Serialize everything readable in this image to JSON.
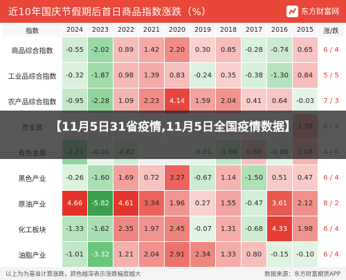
{
  "header": {
    "title": "近10年国庆节假期后首日商品指数涨跌（%）",
    "brand_name": "东方财富网"
  },
  "table": {
    "columns": [
      "指数",
      "2024",
      "2023",
      "2022",
      "2021",
      "2020",
      "2019",
      "2018",
      "2017",
      "2016",
      "2015",
      "涨/跌"
    ],
    "rows": [
      {
        "name": "商品综合指数",
        "values": [
          "-0.55",
          "-2.02",
          "0.89",
          "1.42",
          "2.20",
          "0.30",
          "0.85",
          "-0.28",
          "-0.74",
          "0.65"
        ],
        "ratio": "6 / 4"
      },
      {
        "name": "工业品综合指数",
        "values": [
          "-0.32",
          "-1.87",
          "0.98",
          "1.39",
          "0.83",
          "-0.24",
          "0.35",
          "-0.38",
          "-1.30",
          "0.84"
        ],
        "ratio": "5 / 5"
      },
      {
        "name": "农产品综合指数",
        "values": [
          "-0.95",
          "-2.28",
          "1.09",
          "2.23",
          "4.14",
          "1.59",
          "2.04",
          "0.41",
          "0.64",
          "-0.03"
        ],
        "ratio": "7 / 3"
      },
      {
        "name": "贵金属",
        "values": [
          "",
          "",
          "",
          "",
          "",
          "",
          "",
          "",
          "",
          "1.78"
        ],
        "ratio": "6 / 4"
      },
      {
        "name": "有色金属",
        "values": [
          "-2.21",
          "-0.01",
          "-0.62",
          "",
          "",
          "-0.01",
          "-1.06",
          "0.80",
          "-0.06",
          "1.08"
        ],
        "ratio": "4 / 6"
      },
      {
        "name": "黑色产业",
        "values": [
          "-0.26",
          "-1.60",
          "1.69",
          "0.72",
          "3.27",
          "-0.67",
          "1.14",
          "-1.50",
          "0.51",
          "0.47"
        ],
        "ratio": "6 / 4"
      },
      {
        "name": "原油产业",
        "values": [
          "4.66",
          "-5.82",
          "4.61",
          "3.34",
          "1.96",
          "0.27",
          "1.55",
          "-0.47",
          "3.61",
          "2.12"
        ],
        "ratio": "8 / 2"
      },
      {
        "name": "化工板块",
        "values": [
          "-1.33",
          "-1.62",
          "2.35",
          "1.97",
          "2.45",
          "-0.07",
          "1.31",
          "-0.68",
          "4.33",
          "1.98"
        ],
        "ratio": "6 / 4"
      },
      {
        "name": "油脂产业",
        "values": [
          "-1.01",
          "-3.32",
          "1.21",
          "2.04",
          "2.91",
          "2.34",
          "1.33",
          "0.80",
          "-0.15",
          "-0.10"
        ],
        "ratio": "6 / 4"
      }
    ]
  },
  "overlay": {
    "text": "【11月5日31省疫情,11月5日全国疫情数据】"
  },
  "footer": {
    "note": "以上为为基准计算涨跌，颜色越深表示涨跌幅度越大",
    "source": "数据来源：东方财富期货APP"
  },
  "colors": {
    "header_red": "#e8473a",
    "up_red": "#e33b2f",
    "down_green": "#3aa34c"
  }
}
